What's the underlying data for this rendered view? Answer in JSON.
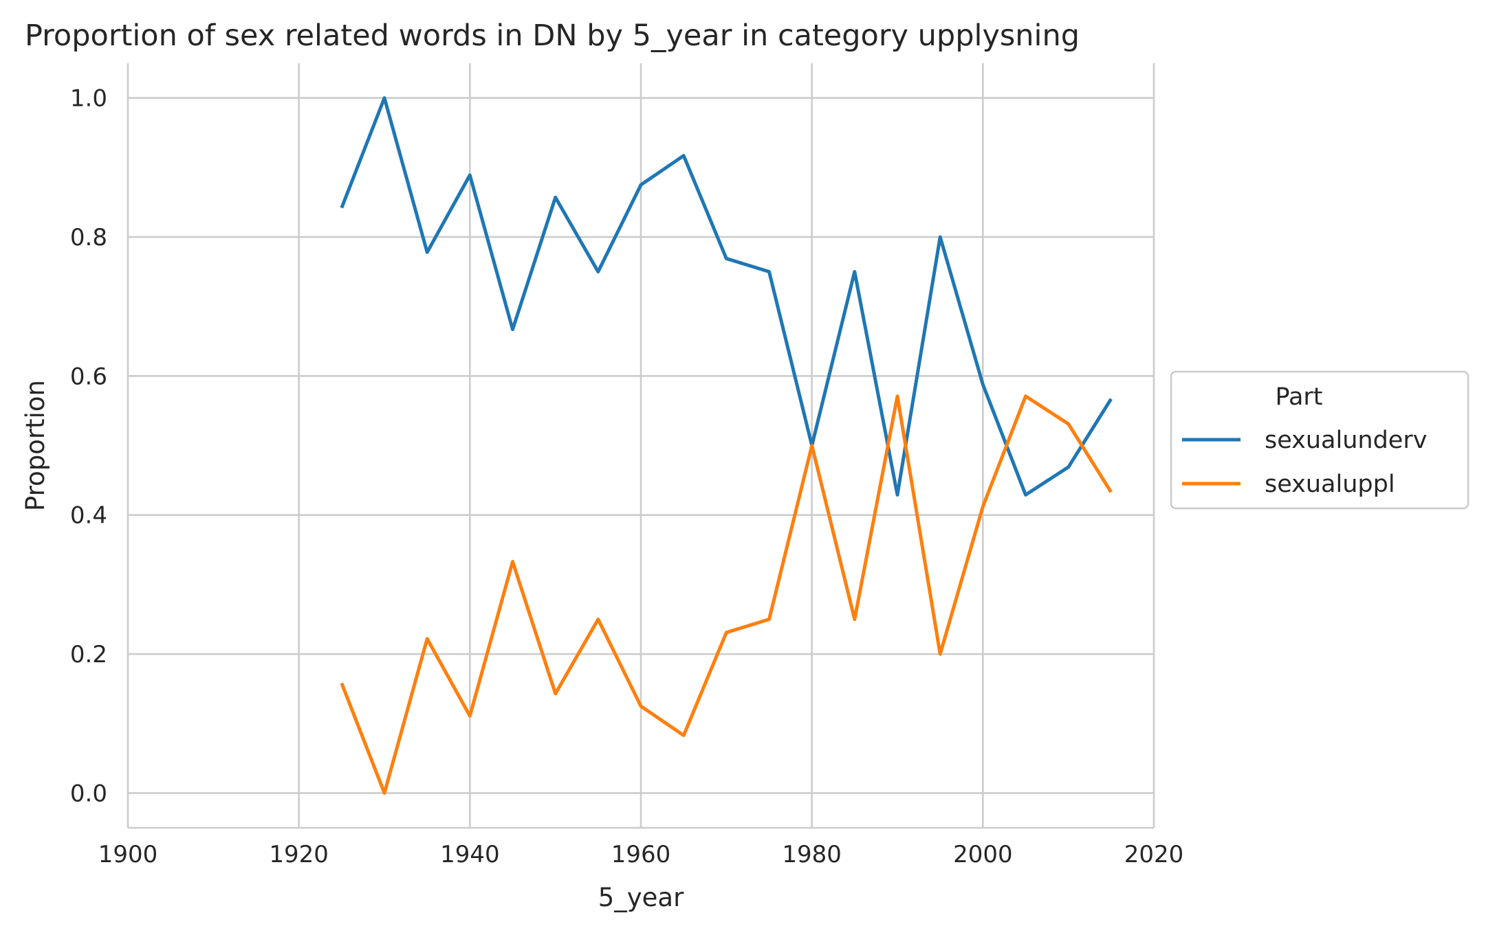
{
  "chart_data": {
    "type": "line",
    "title": "Proportion of sex related words in DN by 5_year in category upplysning",
    "xlabel": "5_year",
    "ylabel": "Proportion",
    "xlim": [
      1900,
      2020
    ],
    "ylim": [
      -0.05,
      1.05
    ],
    "xticks": [
      1900,
      1920,
      1940,
      1960,
      1980,
      2000,
      2020
    ],
    "xtick_labels": [
      "1900",
      "1920",
      "1940",
      "1960",
      "1980",
      "2000",
      "2020"
    ],
    "yticks": [
      0.0,
      0.2,
      0.4,
      0.6,
      0.8,
      1.0
    ],
    "ytick_labels": [
      "0.0",
      "0.2",
      "0.4",
      "0.6",
      "0.8",
      "1.0"
    ],
    "grid": true,
    "legend": {
      "title": "Part",
      "placement": "center-right, outside plot"
    },
    "x": [
      1925,
      1930,
      1935,
      1940,
      1945,
      1950,
      1955,
      1960,
      1965,
      1970,
      1975,
      1980,
      1985,
      1990,
      1995,
      2000,
      2005,
      2010,
      2015
    ],
    "series": [
      {
        "name": "sexualunderv",
        "color": "#1f77b4",
        "values": [
          0.842,
          1.0,
          0.778,
          0.889,
          0.667,
          0.857,
          0.75,
          0.875,
          0.917,
          0.769,
          0.75,
          0.5,
          0.75,
          0.429,
          0.8,
          0.588,
          0.429,
          0.469,
          0.567
        ]
      },
      {
        "name": "sexualuppl",
        "color": "#ff7f0e",
        "values": [
          0.158,
          0.0,
          0.222,
          0.111,
          0.333,
          0.143,
          0.25,
          0.125,
          0.083,
          0.231,
          0.25,
          0.5,
          0.25,
          0.571,
          0.2,
          0.412,
          0.571,
          0.531,
          0.433
        ]
      }
    ]
  }
}
